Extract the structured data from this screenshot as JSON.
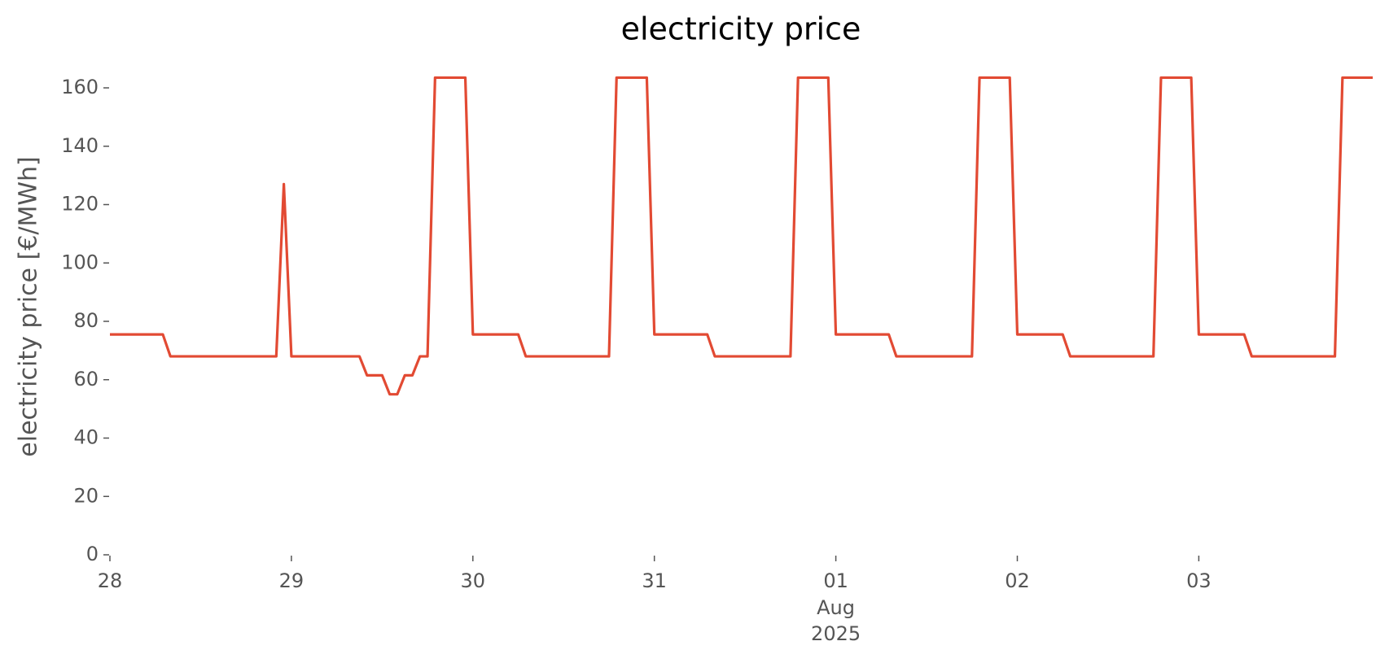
{
  "chart_data": {
    "type": "line",
    "title": "electricity price",
    "ylabel": "electricity price [€/MWh]",
    "color": "#e24a33",
    "grid": false,
    "x": [
      0,
      1,
      2,
      3,
      4,
      5,
      6,
      7,
      8,
      9,
      10,
      11,
      12,
      13,
      14,
      15,
      16,
      17,
      18,
      19,
      20,
      21,
      22,
      23,
      24,
      25,
      26,
      27,
      28,
      29,
      30,
      31,
      32,
      33,
      34,
      35,
      36,
      37,
      38,
      39,
      40,
      41,
      42,
      43,
      44,
      45,
      46,
      47,
      48,
      49,
      50,
      51,
      52,
      53,
      54,
      55,
      56,
      57,
      58,
      59,
      60,
      61,
      62,
      63,
      64,
      65,
      66,
      67,
      68,
      69,
      70,
      71,
      72,
      73,
      74,
      75,
      76,
      77,
      78,
      79,
      80,
      81,
      82,
      83,
      84,
      85,
      86,
      87,
      88,
      89,
      90,
      91,
      92,
      93,
      94,
      95,
      96,
      97,
      98,
      99,
      100,
      101,
      102,
      103,
      104,
      105,
      106,
      107,
      108,
      109,
      110,
      111,
      112,
      113,
      114,
      115,
      116,
      117,
      118,
      119,
      120,
      121,
      122,
      123,
      124,
      125,
      126,
      127,
      128,
      129,
      130,
      131,
      132,
      133,
      134,
      135,
      136,
      137,
      138,
      139,
      140,
      141,
      142,
      143,
      144,
      145,
      146,
      147,
      148,
      149,
      150,
      151,
      152,
      153,
      154,
      155,
      156,
      157,
      158,
      159,
      160,
      161,
      162,
      163,
      164,
      165,
      166,
      167
    ],
    "values": [
      75.5,
      75.5,
      75.5,
      75.5,
      75.5,
      75.5,
      75.5,
      75.5,
      68,
      68,
      68,
      68,
      68,
      68,
      68,
      68,
      68,
      68,
      68,
      68,
      68,
      68,
      68,
      127,
      68,
      68,
      68,
      68,
      68,
      68,
      68,
      68,
      68,
      68,
      61.5,
      61.5,
      61.5,
      55,
      55,
      61.5,
      61.5,
      68,
      68,
      163.5,
      163.5,
      163.5,
      163.5,
      163.5,
      75.5,
      75.5,
      75.5,
      75.5,
      75.5,
      75.5,
      75.5,
      68,
      68,
      68,
      68,
      68,
      68,
      68,
      68,
      68,
      68,
      68,
      68,
      163.5,
      163.5,
      163.5,
      163.5,
      163.5,
      75.5,
      75.5,
      75.5,
      75.5,
      75.5,
      75.5,
      75.5,
      75.5,
      68,
      68,
      68,
      68,
      68,
      68,
      68,
      68,
      68,
      68,
      68,
      163.5,
      163.5,
      163.5,
      163.5,
      163.5,
      75.5,
      75.5,
      75.5,
      75.5,
      75.5,
      75.5,
      75.5,
      75.5,
      68,
      68,
      68,
      68,
      68,
      68,
      68,
      68,
      68,
      68,
      68,
      163.5,
      163.5,
      163.5,
      163.5,
      163.5,
      75.5,
      75.5,
      75.5,
      75.5,
      75.5,
      75.5,
      75.5,
      68,
      68,
      68,
      68,
      68,
      68,
      68,
      68,
      68,
      68,
      68,
      68,
      163.5,
      163.5,
      163.5,
      163.5,
      163.5,
      75.5,
      75.5,
      75.5,
      75.5,
      75.5,
      75.5,
      75.5,
      68,
      68,
      68,
      68,
      68,
      68,
      68,
      68,
      68,
      68,
      68,
      68,
      163.5,
      163.5,
      163.5,
      163.5,
      163.5
    ],
    "xlim": [
      0,
      167
    ],
    "xticks": [
      {
        "value": 0,
        "label": "28"
      },
      {
        "value": 24,
        "label": "29"
      },
      {
        "value": 48,
        "label": "30"
      },
      {
        "value": 72,
        "label": "31"
      },
      {
        "value": 96,
        "label": "01"
      },
      {
        "value": 120,
        "label": "02"
      },
      {
        "value": 144,
        "label": "03"
      }
    ],
    "xtick_sublabel": {
      "value": 96,
      "label": [
        "Aug",
        "2025"
      ]
    },
    "ylim": [
      0,
      168
    ],
    "yticks": [
      0,
      20,
      40,
      60,
      80,
      100,
      120,
      140,
      160
    ]
  }
}
